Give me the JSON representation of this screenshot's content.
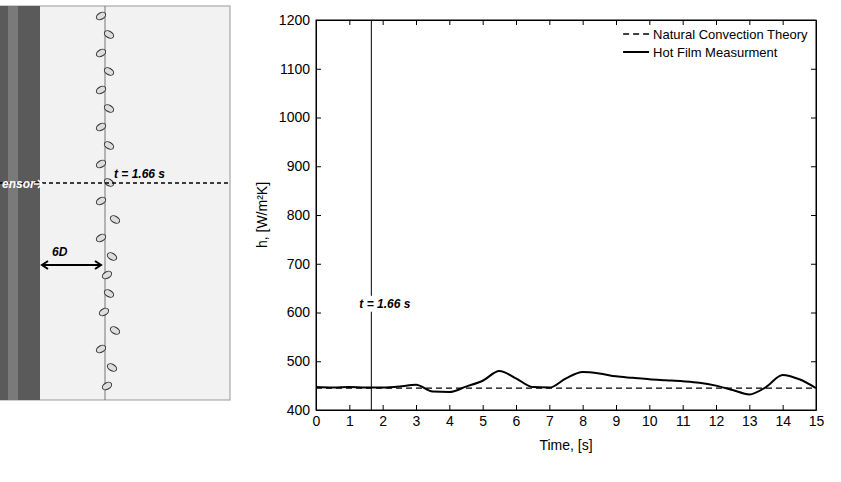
{
  "image_panel": {
    "sensor_label": "ensor",
    "time_label": "t = 1.66 s",
    "distance_label": "6D"
  },
  "chart_data": {
    "type": "line",
    "x_label": "Time, [s]",
    "y_label": "h, [W/m²K]",
    "x": [
      0,
      0.5,
      1,
      1.5,
      2,
      2.5,
      3,
      3.5,
      4,
      4.5,
      5,
      5.5,
      6,
      6.5,
      7,
      7.5,
      8,
      8.5,
      9,
      9.5,
      10,
      10.5,
      11,
      11.5,
      12,
      12.5,
      13,
      13.5,
      14,
      14.5,
      15
    ],
    "series": [
      {
        "name": "Natural Convection Theory",
        "color": "#000000",
        "line_style": "dashed",
        "values": [
          445,
          445,
          445,
          445,
          445,
          445,
          445,
          445,
          445,
          445,
          445,
          445,
          445,
          445,
          445,
          445,
          445,
          445,
          445,
          445,
          445,
          445,
          445,
          445,
          445,
          445,
          445,
          445,
          445,
          445,
          445
        ]
      },
      {
        "name": "Hot Film Measurment",
        "color": "#000000",
        "line_style": "solid",
        "values": [
          447,
          446,
          447,
          446,
          446,
          448,
          452,
          438,
          437,
          448,
          460,
          480,
          465,
          447,
          446,
          465,
          478,
          475,
          469,
          466,
          463,
          461,
          459,
          456,
          450,
          441,
          432,
          447,
          472,
          463,
          445
        ]
      }
    ],
    "annotations": [
      {
        "x": 1.66,
        "label": "t = 1.66 s"
      }
    ],
    "xlim": [
      0,
      15
    ],
    "xticks": [
      0,
      1,
      2,
      3,
      4,
      5,
      6,
      7,
      8,
      9,
      10,
      11,
      12,
      13,
      14,
      15
    ],
    "ylim": [
      400,
      1200
    ],
    "yticks": [
      400,
      500,
      600,
      700,
      800,
      900,
      1000,
      1100,
      1200
    ],
    "grid": false,
    "legend": "upper right"
  }
}
